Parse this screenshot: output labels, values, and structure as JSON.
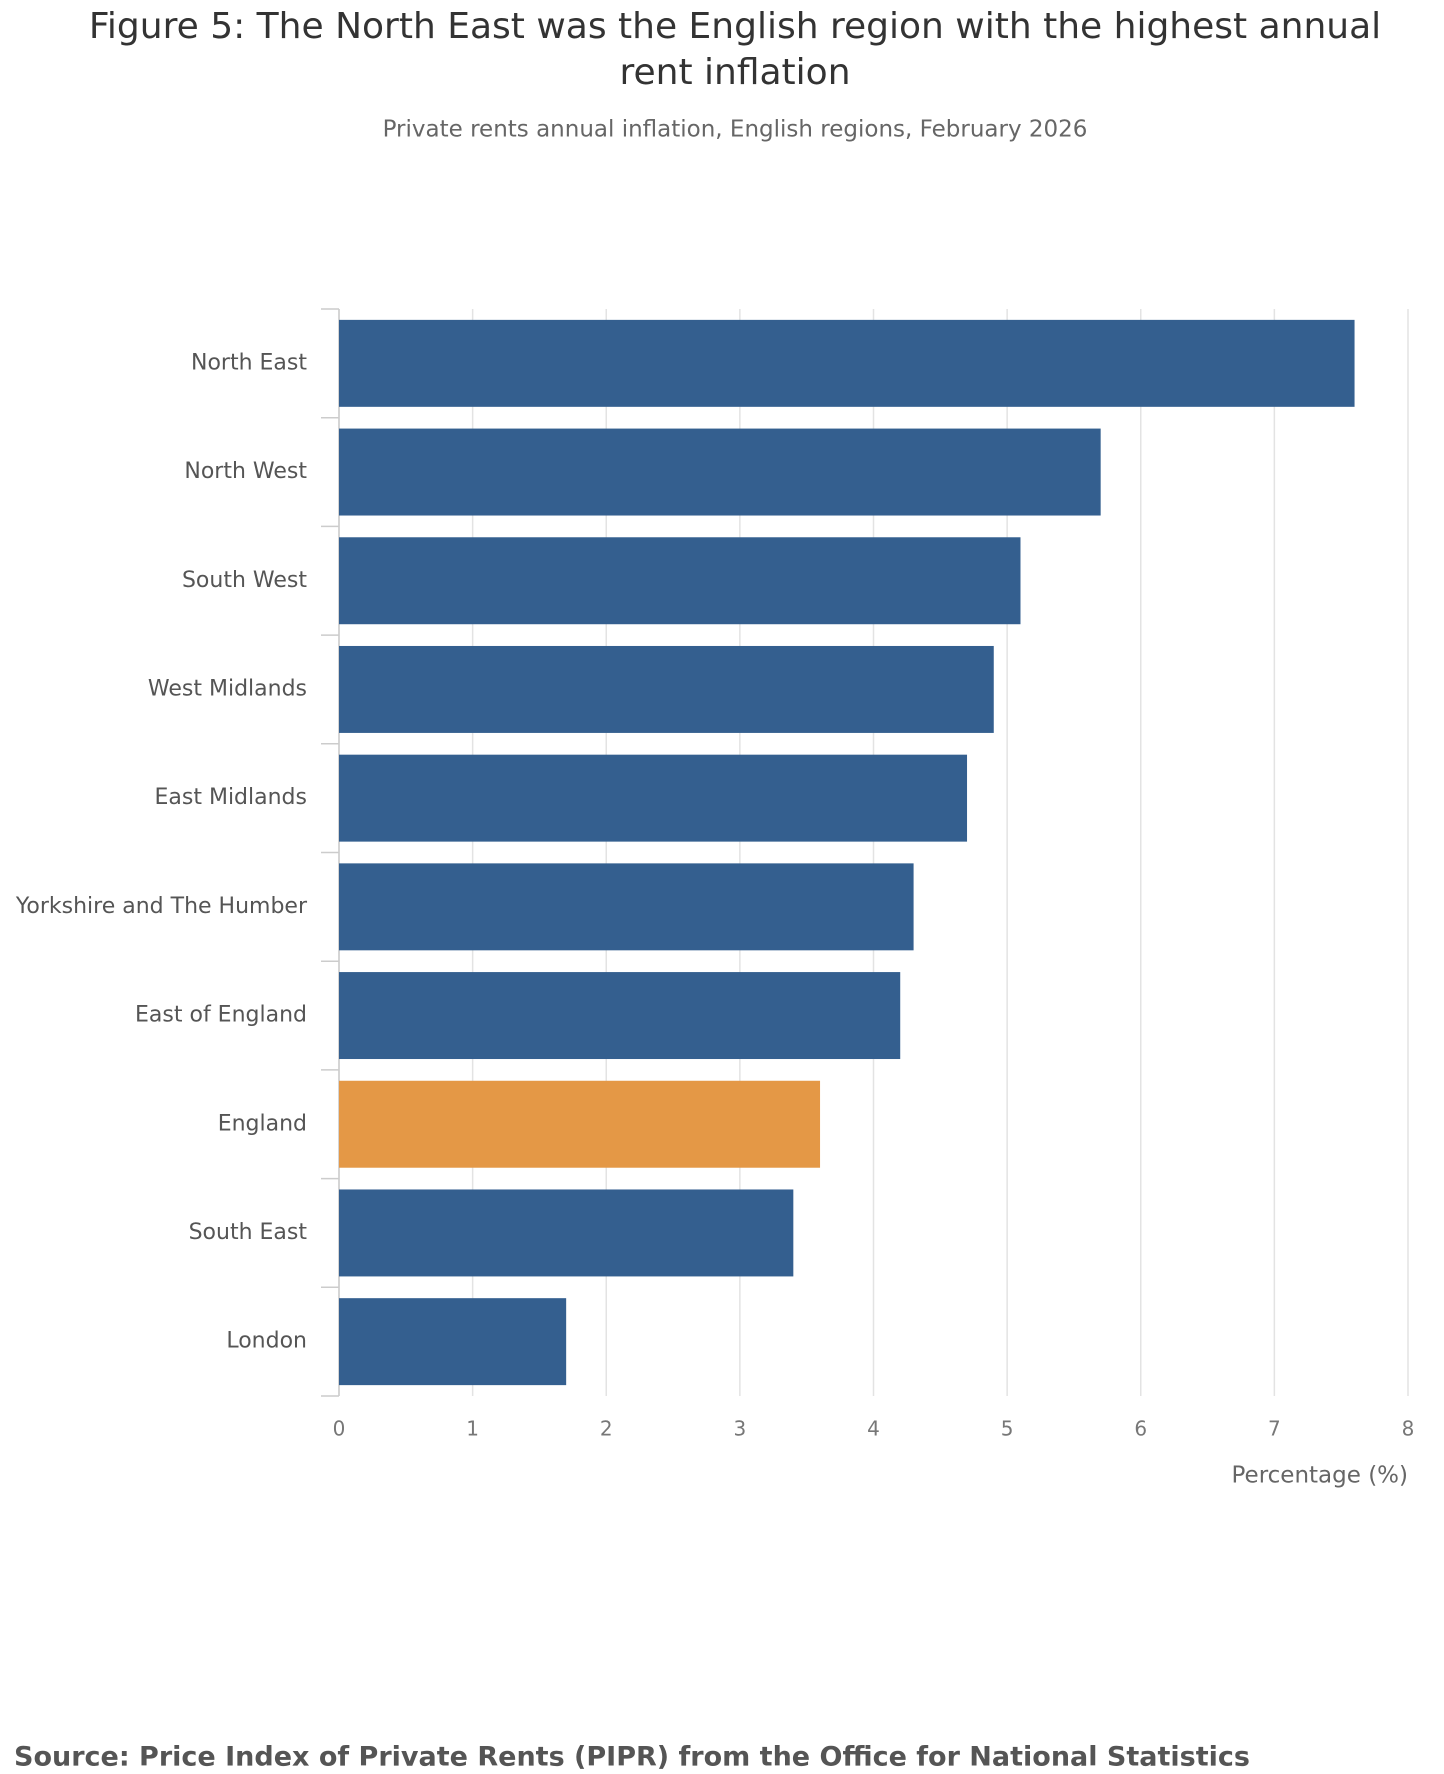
{
  "chart_data": {
    "type": "bar",
    "orientation": "horizontal",
    "title": "Figure 5: The North East was the English region with the highest annual rent inflation",
    "subtitle": "Private rents annual inflation, English regions, February 2026",
    "categories": [
      "North East",
      "North West",
      "South West",
      "West Midlands",
      "East Midlands",
      "Yorkshire and The Humber",
      "East of England",
      "England",
      "South East",
      "London"
    ],
    "values": [
      7.6,
      5.7,
      5.1,
      4.9,
      4.7,
      4.3,
      4.2,
      3.6,
      3.4,
      1.7
    ],
    "colors": [
      "#345f8f",
      "#345f8f",
      "#345f8f",
      "#345f8f",
      "#345f8f",
      "#345f8f",
      "#345f8f",
      "#e49846",
      "#345f8f",
      "#345f8f"
    ],
    "xlim": [
      0,
      8
    ],
    "xticks": [
      0,
      1,
      2,
      3,
      4,
      5,
      6,
      7,
      8
    ],
    "grid": true,
    "x_label": "Percentage (%)",
    "source": "Source: Price Index of Private Rents (PIPR) from the Office for National Statistics"
  }
}
